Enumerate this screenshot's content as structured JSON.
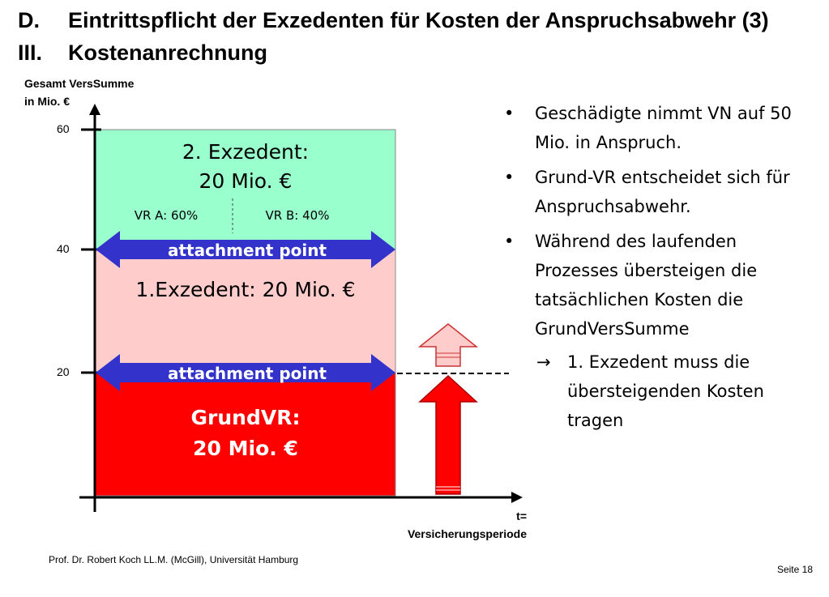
{
  "slide": {
    "title_line1_num": "D.",
    "title_line1": "Eintrittspflicht der Exzedenten für Kosten der Anspruchsabwehr (3)",
    "title_line2_num": "III.",
    "title_line2": "Kostenanrechnung",
    "footer": "Prof. Dr. Robert Koch LL.M. (McGill), Universität Hamburg",
    "page_number": "Seite 18"
  },
  "diagram": {
    "y_caption_line1": "Gesamt VersSumme",
    "y_caption_line2": "in Mio. €",
    "ticks": [
      "60",
      "40",
      "20"
    ],
    "x_caption_line1": "t=",
    "x_caption_line2": "Versicherungsperiode",
    "layer2_line1": "2. Exzedent:",
    "layer2_line2": "20 Mio. €",
    "vr_a": "VR A: 60%",
    "vr_b": "VR B: 40%",
    "attachment_top": "attachment point",
    "layer1": "1.Exzedent: 20 Mio. €",
    "attachment_bottom": "attachment point",
    "grund_line1": "GrundVR:",
    "grund_line2": "20 Mio. €",
    "colors": {
      "layer2": "#99ffcc",
      "layer1": "#ffcccc",
      "grund": "#ff0000",
      "arrow": "#3333cc"
    }
  },
  "bullets": [
    "Geschädigte nimmt VN auf 50 Mio. in Anspruch.",
    "Grund-VR entscheidet sich für Anspruchsabwehr.",
    "Während des laufenden Prozesses übersteigen die tatsächlichen Kosten die GrundVersSumme"
  ],
  "sub_bullet": {
    "arrow": "→",
    "text": "1. Exzedent muss die übersteigenden Kosten tragen"
  }
}
